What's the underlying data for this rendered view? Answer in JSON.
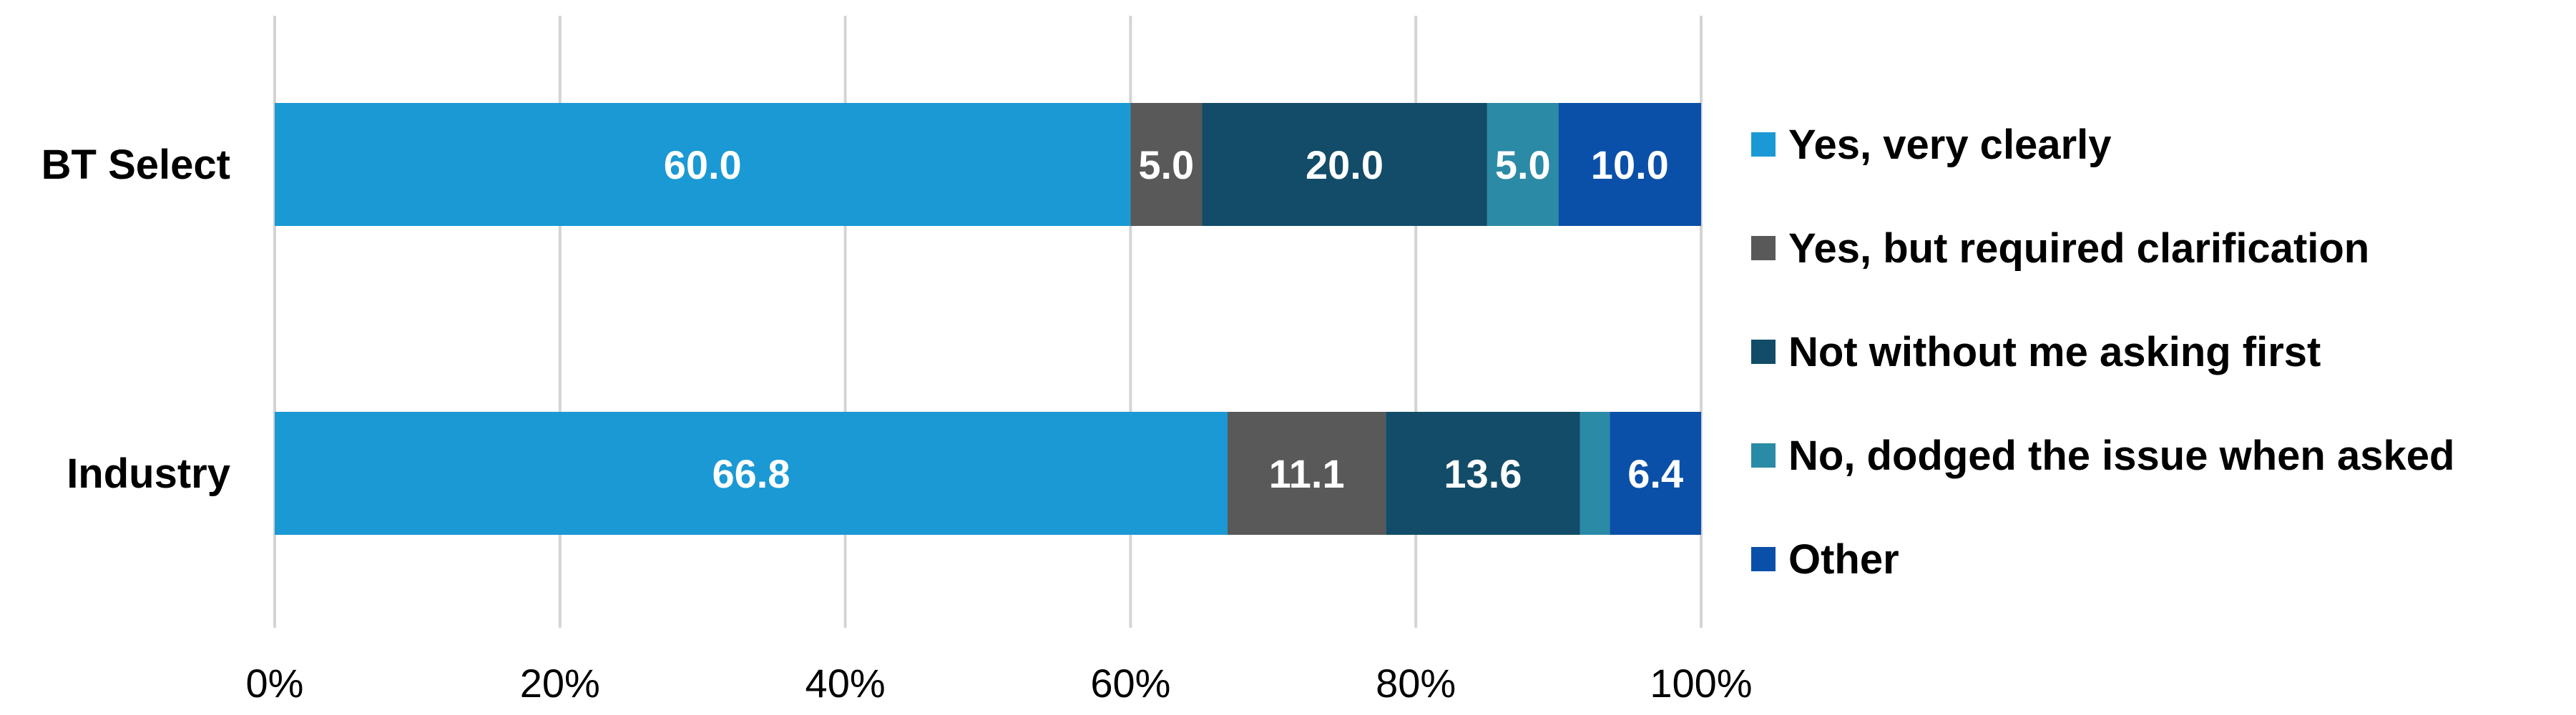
{
  "chart_data": {
    "type": "bar",
    "orientation": "horizontal",
    "stacked": "percent",
    "title": "",
    "xlabel": "",
    "ylabel": "",
    "categories": [
      "BT Select",
      "Industry"
    ],
    "series": [
      {
        "name": "Yes, very clearly",
        "color": "#1a99d4",
        "values": [
          60.0,
          66.8
        ],
        "labels": [
          "60.0",
          "66.8"
        ]
      },
      {
        "name": "Yes, but required clarification",
        "color": "#595959",
        "values": [
          5.0,
          11.1
        ],
        "labels": [
          "5.0",
          "11.1"
        ]
      },
      {
        "name": "Not without me asking first",
        "color": "#124c68",
        "values": [
          20.0,
          13.6
        ],
        "labels": [
          "20.0",
          "13.6"
        ]
      },
      {
        "name": "No, dodged the issue when asked",
        "color": "#2b8aa6",
        "values": [
          5.0,
          2.1
        ],
        "labels": [
          "5.0",
          ""
        ]
      },
      {
        "name": "Other",
        "color": "#0b50a8",
        "values": [
          10.0,
          6.4
        ],
        "labels": [
          "10.0",
          "6.4"
        ]
      }
    ],
    "xlim": [
      0,
      100
    ],
    "xticks": [
      "0%",
      "20%",
      "40%",
      "60%",
      "80%",
      "100%"
    ],
    "grid": "vertical",
    "legend": "right"
  }
}
